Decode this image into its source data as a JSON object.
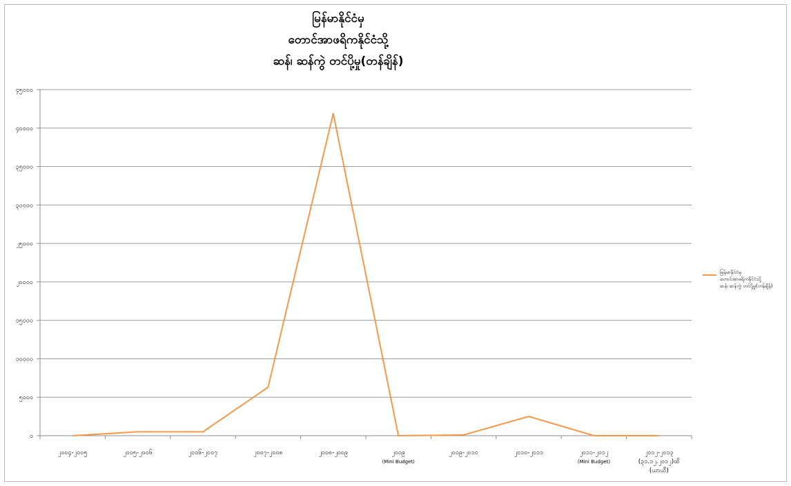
{
  "chart_data": {
    "type": "line",
    "title_lines": [
      "မြန်မာနိုင်ငံမှ",
      "တောင်အာဖရိကနိုင်ငံသို့",
      "ဆန်၊ ဆန်ကွဲ တင်ပို့မှု(တန်ချိန်)"
    ],
    "categories": [
      [
        "၂၀၀၄-၂၀၀၅"
      ],
      [
        "၂၀၀၅-၂၀၀၆"
      ],
      [
        "၂၀၀၆-၂၀၀၇"
      ],
      [
        "၂၀၀၇-၂၀၀၈"
      ],
      [
        "၂၀၀၈-၂၀၀၉"
      ],
      [
        "၂၀၀၉",
        "(Mini Budget)"
      ],
      [
        "၂၀၀၉-၂၀၁၀"
      ],
      [
        "၂၀၁၀-၂၀၁၁"
      ],
      [
        "၂၀၁၁-၂၀၁၂",
        "(Mini Budget)"
      ],
      [
        "၂၀၁၂-၂၀၁၃",
        "(၃၁.၁၂.၂၀၁၂)ထိ",
        "(ယာယီ)"
      ]
    ],
    "series": [
      {
        "name_lines": [
          "မြန်မာနိုင်ငံမှ",
          "တောင်အာဖရိကနိုင်ငံသို့",
          "ဆန်၊ ဆန်ကွဲ တင်ပို့မှု(တန်ချိန်)"
        ],
        "color": "#f79646",
        "values": [
          0,
          500,
          500,
          6300,
          41900,
          0,
          100,
          2500,
          0,
          0
        ]
      }
    ],
    "y_ticks": [
      "၀",
      "၅၀၀၀",
      "၁၀၀၀၀",
      "၁၅၀၀၀",
      "၂၀၀၀၀",
      "၂၅၀၀၀",
      "၃၀၀၀၀",
      "၃၅၀၀၀",
      "၄၀၀၀၀",
      "၄၅၀၀၀"
    ],
    "ylim": [
      0,
      45000
    ],
    "y_step": 5000,
    "grid": true,
    "legend_position": "right"
  }
}
